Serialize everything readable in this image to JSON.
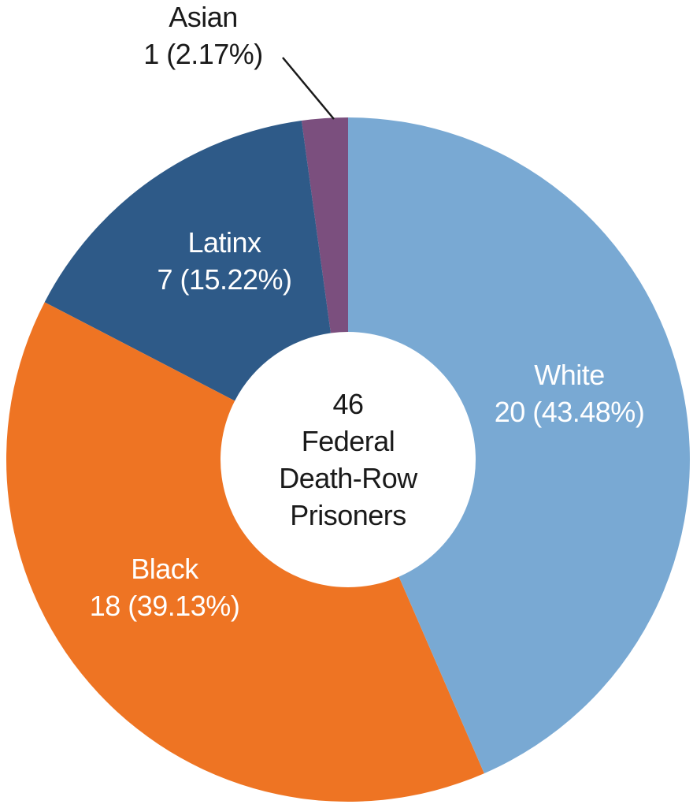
{
  "chart_data": {
    "type": "pie",
    "subtype": "donut",
    "direction": "clockwise",
    "start_angle_deg": 0,
    "legend": "none",
    "grid": false,
    "total": 46,
    "center_lines": [
      "46",
      "Federal",
      "Death-Row",
      "Prisoners"
    ],
    "segments": [
      {
        "name": "White",
        "count": 20,
        "pct": 43.48,
        "label": "20 (43.48%)",
        "color": "#79A9D3",
        "text_color": "#FFFFFF"
      },
      {
        "name": "Black",
        "count": 18,
        "pct": 39.13,
        "label": "18 (39.13%)",
        "color": "#EE7423",
        "text_color": "#FFFFFF"
      },
      {
        "name": "Latinx",
        "count": 7,
        "pct": 15.22,
        "label": "7 (15.22%)",
        "color": "#2E5A88",
        "text_color": "#FFFFFF"
      },
      {
        "name": "Asian",
        "count": 1,
        "pct": 2.17,
        "label": "1 (2.17%)",
        "color": "#7B4F7E",
        "text_color": "#1A1A1A"
      }
    ],
    "leader_line_color": "#1A1A1A"
  }
}
